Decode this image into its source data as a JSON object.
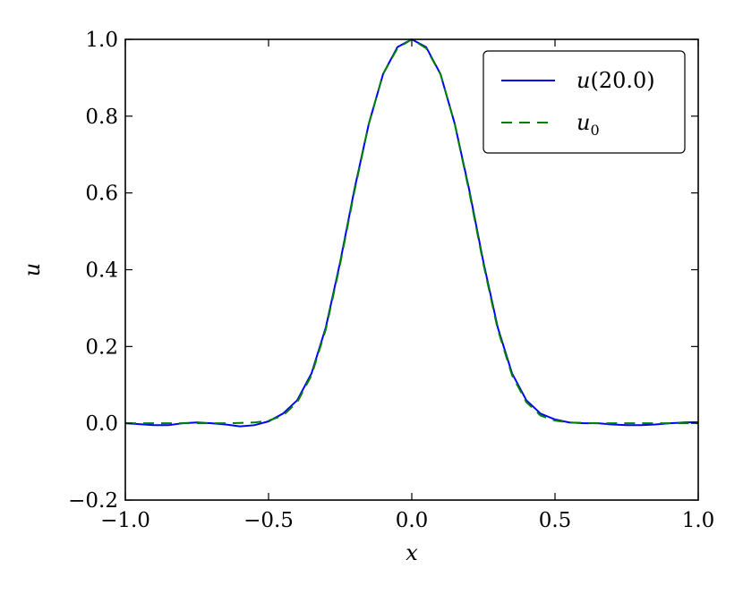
{
  "chart_data": {
    "type": "line",
    "xlabel": "x",
    "ylabel": "u",
    "xlim": [
      -1.0,
      1.0
    ],
    "ylim": [
      -0.2,
      1.0
    ],
    "xticks": [
      "−1.0",
      "−0.5",
      "0.0",
      "0.5",
      "1.0"
    ],
    "xtick_values": [
      -1.0,
      -0.5,
      0.0,
      0.5,
      1.0
    ],
    "yticks": [
      "−0.2",
      "0.0",
      "0.2",
      "0.4",
      "0.6",
      "0.8",
      "1.0"
    ],
    "ytick_values": [
      -0.2,
      0.0,
      0.2,
      0.4,
      0.6,
      0.8,
      1.0
    ],
    "grid": false,
    "legend_position": "top-right",
    "series": [
      {
        "name": "u(20.0)",
        "legend_main": "u",
        "legend_rest": "(20.0)",
        "color": "#0000ff",
        "style": "solid",
        "x": [
          -1.0,
          -0.9,
          -0.85,
          -0.8,
          -0.75,
          -0.7,
          -0.65,
          -0.6,
          -0.55,
          -0.5,
          -0.45,
          -0.4,
          -0.35,
          -0.3,
          -0.25,
          -0.2,
          -0.15,
          -0.1,
          -0.05,
          0.0,
          0.05,
          0.1,
          0.15,
          0.2,
          0.25,
          0.3,
          0.35,
          0.4,
          0.45,
          0.5,
          0.55,
          0.6,
          0.65,
          0.7,
          0.75,
          0.8,
          0.85,
          0.9,
          0.95,
          1.0
        ],
        "y": [
          0.0,
          -0.005,
          -0.005,
          0.0,
          0.002,
          0.0,
          -0.003,
          -0.008,
          -0.005,
          0.005,
          0.025,
          0.06,
          0.13,
          0.25,
          0.42,
          0.61,
          0.78,
          0.91,
          0.98,
          1.0,
          0.98,
          0.91,
          0.78,
          0.61,
          0.42,
          0.25,
          0.13,
          0.06,
          0.025,
          0.01,
          0.002,
          0.0,
          0.0,
          -0.003,
          -0.005,
          -0.005,
          -0.003,
          0.0,
          0.002,
          0.003
        ]
      },
      {
        "name": "u_0",
        "legend_main": "u",
        "legend_sub": "0",
        "color": "#008000",
        "style": "dashed",
        "x": [
          -1.0,
          -0.9,
          -0.85,
          -0.8,
          -0.75,
          -0.7,
          -0.65,
          -0.6,
          -0.55,
          -0.5,
          -0.45,
          -0.4,
          -0.35,
          -0.3,
          -0.25,
          -0.2,
          -0.15,
          -0.1,
          -0.05,
          0.0,
          0.05,
          0.1,
          0.15,
          0.2,
          0.25,
          0.3,
          0.35,
          0.4,
          0.45,
          0.5,
          0.55,
          0.6,
          0.65,
          0.7,
          0.75,
          0.8,
          0.85,
          0.9,
          0.95,
          1.0
        ],
        "y": [
          0.0,
          0.0,
          0.0,
          0.0,
          0.0,
          0.0,
          0.0,
          0.001,
          0.002,
          0.007,
          0.02,
          0.055,
          0.125,
          0.245,
          0.415,
          0.605,
          0.78,
          0.91,
          0.977,
          1.0,
          0.977,
          0.91,
          0.78,
          0.605,
          0.415,
          0.245,
          0.125,
          0.055,
          0.02,
          0.007,
          0.002,
          0.001,
          0.0,
          0.0,
          0.0,
          0.0,
          0.0,
          0.0,
          0.0,
          0.0
        ]
      }
    ]
  }
}
